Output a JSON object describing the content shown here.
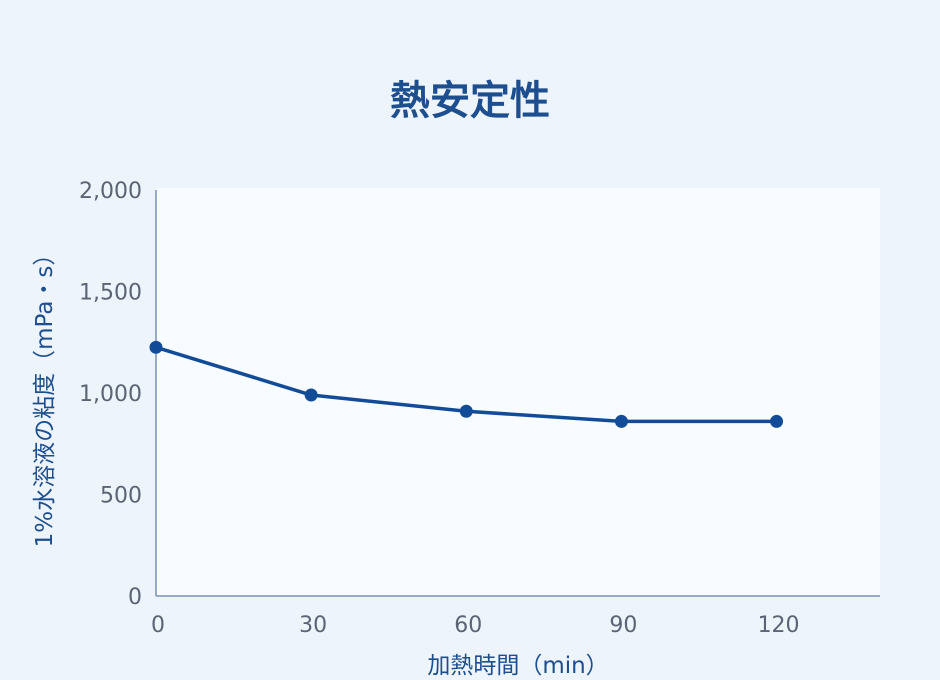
{
  "chart_data": {
    "type": "line",
    "title": "熱安定性",
    "xlabel": "加熱時間（min）",
    "ylabel": "1%水溶液の粘度（mPa・s）",
    "x": [
      0,
      30,
      60,
      90,
      120
    ],
    "x_tick_labels": [
      "0",
      "30",
      "60",
      "90",
      "120"
    ],
    "xlim": [
      0,
      140
    ],
    "ylim": [
      0,
      2000
    ],
    "y_ticks": [
      0,
      500,
      1000,
      1500,
      2000
    ],
    "y_tick_labels": [
      "0",
      "500",
      "1,000",
      "1,500",
      "2,000"
    ],
    "grid": false,
    "series": [
      {
        "values": [
          1225,
          990,
          910,
          860,
          860
        ]
      }
    ],
    "colors": {
      "line": "#124c99",
      "axis": "#7c8fb3",
      "plot_bg": "#f8fbff",
      "page_bg": "#eef4fc"
    }
  }
}
